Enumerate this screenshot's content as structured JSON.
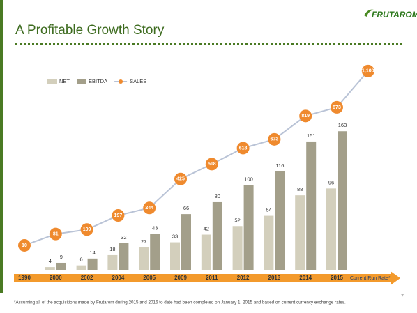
{
  "chart_data": {
    "type": "bar-line",
    "title": "A Profitable Growth Story",
    "categories": [
      "1990",
      "2000",
      "2002",
      "2004",
      "2005",
      "2009",
      "2011",
      "2012",
      "2013",
      "2014",
      "2015",
      "Current Run Rate*"
    ],
    "series": [
      {
        "name": "NET",
        "color": "#d3cfbc",
        "values": [
          null,
          4,
          6,
          18,
          27,
          33,
          42,
          52,
          64,
          88,
          96,
          null
        ]
      },
      {
        "name": "EBITDA",
        "color": "#a39f8a",
        "values": [
          null,
          9,
          14,
          32,
          43,
          66,
          80,
          100,
          116,
          151,
          163,
          null
        ]
      },
      {
        "name": "SALES",
        "color": "#ef8a2e",
        "line_color": "#b9c3d6",
        "axis": "y2",
        "values": [
          10,
          81,
          109,
          197,
          244,
          425,
          518,
          618,
          673,
          819,
          873,
          1100
        ],
        "value_labels": [
          "10",
          "81",
          "109",
          "197",
          "244",
          "425",
          "518",
          "618",
          "673",
          "819",
          "873",
          "1,100"
        ]
      }
    ],
    "ylim": [
      0,
      235
    ],
    "y2lim": [
      -147,
      1108
    ],
    "legend": "top-left"
  },
  "logo": "FRUTAROM",
  "footnote": "*Assuming all of the acquisitions made by Frutarom during 2015 and 2016 to date had been completed on January 1, 2015 and based on current currency exchange rates.",
  "page_number": "7"
}
